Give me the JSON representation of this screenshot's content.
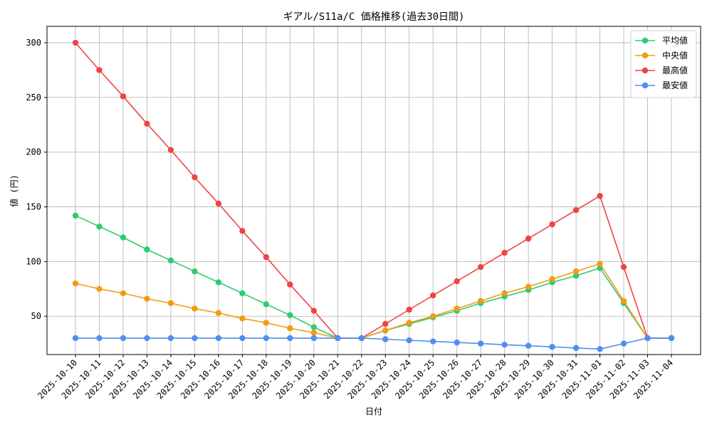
{
  "chart_data": {
    "type": "line",
    "title": "ギアル/S11a/C 価格推移(過去30日間)",
    "xlabel": "日付",
    "ylabel": "値 (円)",
    "categories": [
      "2025-10-10",
      "2025-10-11",
      "2025-10-12",
      "2025-10-13",
      "2025-10-14",
      "2025-10-15",
      "2025-10-16",
      "2025-10-17",
      "2025-10-18",
      "2025-10-19",
      "2025-10-20",
      "2025-10-21",
      "2025-10-22",
      "2025-10-23",
      "2025-10-24",
      "2025-10-25",
      "2025-10-26",
      "2025-10-27",
      "2025-10-28",
      "2025-10-29",
      "2025-10-30",
      "2025-10-31",
      "2025-11-01",
      "2025-11-02",
      "2025-11-03",
      "2025-11-04"
    ],
    "ylim": [
      15,
      315
    ],
    "yticks": [
      50,
      100,
      150,
      200,
      250,
      300
    ],
    "grid": true,
    "legend_position": "top-right",
    "series": [
      {
        "name": "平均値",
        "color": "#2ecc71",
        "values": [
          142,
          132,
          122,
          111,
          101,
          91,
          81,
          71,
          61,
          51,
          40,
          30,
          30,
          37,
          43,
          49,
          55,
          62,
          68,
          74,
          81,
          87,
          94,
          62,
          30,
          30
        ]
      },
      {
        "name": "中央値",
        "color": "#f39c12",
        "values": [
          80,
          75,
          71,
          66,
          62,
          57,
          53,
          48,
          44,
          39,
          35,
          30,
          30,
          37,
          44,
          50,
          57,
          64,
          71,
          77,
          84,
          91,
          98,
          64,
          30,
          30
        ]
      },
      {
        "name": "最高値",
        "color": "#ef4444",
        "values": [
          300,
          275,
          251,
          226,
          202,
          177,
          153,
          128,
          104,
          79,
          55,
          30,
          30,
          43,
          56,
          69,
          82,
          95,
          108,
          121,
          134,
          147,
          160,
          95,
          30,
          30
        ]
      },
      {
        "name": "最安値",
        "color": "#4f8ff0",
        "values": [
          30,
          30,
          30,
          30,
          30,
          30,
          30,
          30,
          30,
          30,
          30,
          30,
          30,
          29,
          28,
          27,
          26,
          25,
          24,
          23,
          22,
          21,
          20,
          25,
          30,
          30
        ]
      }
    ]
  }
}
